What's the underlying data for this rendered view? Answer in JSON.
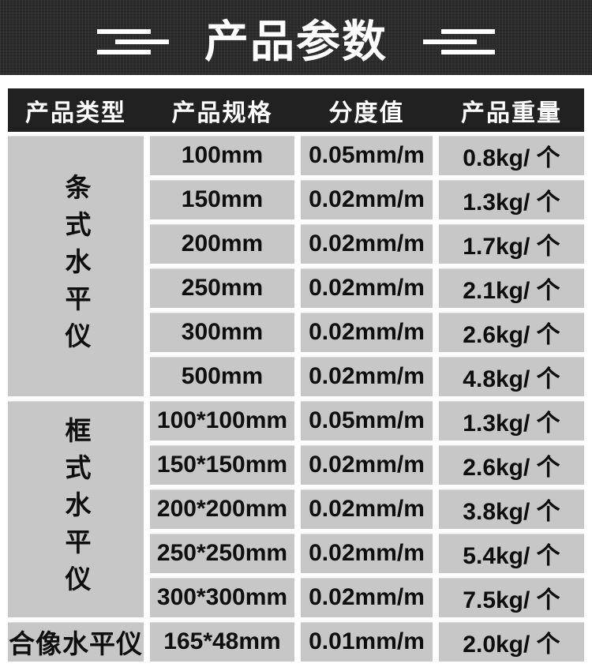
{
  "banner": {
    "title": "产品参数"
  },
  "table": {
    "headers": [
      "产品类型",
      "产品规格",
      "分度值",
      "产品重量"
    ],
    "groups": [
      {
        "type": "条式水平仪",
        "rows": [
          {
            "spec": "100mm",
            "division": "0.05mm/m",
            "weight": "0.8kg/ 个"
          },
          {
            "spec": "150mm",
            "division": "0.02mm/m",
            "weight": "1.3kg/ 个"
          },
          {
            "spec": "200mm",
            "division": "0.02mm/m",
            "weight": "1.7kg/ 个"
          },
          {
            "spec": "250mm",
            "division": "0.02mm/m",
            "weight": "2.1kg/ 个"
          },
          {
            "spec": "300mm",
            "division": "0.02mm/m",
            "weight": "2.6kg/ 个"
          },
          {
            "spec": "500mm",
            "division": "0.02mm/m",
            "weight": "4.8kg/ 个"
          }
        ]
      },
      {
        "type": "框式水平仪",
        "rows": [
          {
            "spec": "100*100mm",
            "division": "0.05mm/m",
            "weight": "1.3kg/ 个"
          },
          {
            "spec": "150*150mm",
            "division": "0.02mm/m",
            "weight": "2.6kg/ 个"
          },
          {
            "spec": "200*200mm",
            "division": "0.02mm/m",
            "weight": "3.8kg/ 个"
          },
          {
            "spec": "250*250mm",
            "division": "0.02mm/m",
            "weight": "5.4kg/ 个"
          },
          {
            "spec": "300*300mm",
            "division": "0.02mm/m",
            "weight": "7.5kg/ 个"
          }
        ]
      },
      {
        "type": "合像水平仪",
        "rows": [
          {
            "spec": "165*48mm",
            "division": "0.01mm/m",
            "weight": "2.0kg/ 个"
          }
        ]
      }
    ]
  },
  "colors": {
    "banner_bg": "#2c2c2c",
    "header_band_bg": "#212121",
    "cell_bg": "#c7c7c7",
    "header_text": "#ffffff",
    "cell_text": "#0e0e0e"
  }
}
